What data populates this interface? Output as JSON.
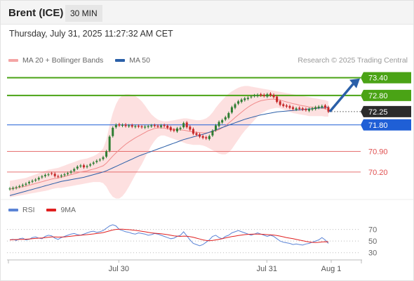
{
  "header": {
    "instrument": "Brent (ICE)",
    "timeframe": "30 MIN",
    "datetime": "Thursday, July 31, 2025 11:27:32 AM CET"
  },
  "legend": {
    "bollinger": {
      "label": "MA 20 + Bollinger Bands",
      "color": "#f08a8a"
    },
    "ma50": {
      "label": "MA 50",
      "color": "#2a5fa8"
    },
    "rsi": {
      "label": "RSI",
      "color": "#5b84d6"
    },
    "rsi_ma": {
      "label": "9MA",
      "color": "#e02020"
    }
  },
  "copyright": "Research © 2025 Trading Central",
  "chart_data": {
    "type": "candlestick",
    "price_scale": {
      "min": 69.6,
      "max": 73.75
    },
    "levels": [
      {
        "label": "73.40",
        "value": 73.4,
        "kind": "resistance",
        "color": "#4aa315"
      },
      {
        "label": "72.80",
        "value": 72.8,
        "kind": "resistance",
        "color": "#4aa315"
      },
      {
        "label": "72.25",
        "value": 72.25,
        "kind": "last",
        "color": "#2b2b2b"
      },
      {
        "label": "71.80",
        "value": 71.8,
        "kind": "pivot",
        "color": "#1f5fd6"
      },
      {
        "label": "70.90",
        "value": 70.9,
        "kind": "support",
        "color": "#e05050"
      },
      {
        "label": "70.20",
        "value": 70.2,
        "kind": "support",
        "color": "#e05050"
      }
    ],
    "candles_close": [
      69.64,
      69.66,
      69.68,
      69.72,
      69.76,
      69.8,
      69.86,
      69.9,
      69.94,
      70.0,
      70.05,
      70.1,
      70.12,
      70.14,
      70.06,
      70.04,
      70.08,
      70.12,
      70.16,
      70.22,
      70.3,
      70.38,
      70.42,
      70.36,
      70.4,
      70.46,
      70.52,
      70.58,
      70.62,
      70.7,
      70.9,
      71.4,
      71.7,
      71.8,
      71.78,
      71.8,
      71.76,
      71.78,
      71.74,
      71.76,
      71.74,
      71.72,
      71.74,
      71.76,
      71.78,
      71.76,
      71.74,
      71.78,
      71.76,
      71.7,
      71.62,
      71.6,
      71.68,
      71.7,
      71.86,
      71.72,
      71.64,
      71.5,
      71.46,
      71.4,
      71.36,
      71.34,
      71.42,
      71.6,
      71.78,
      71.9,
      71.96,
      72.06,
      72.2,
      72.4,
      72.5,
      72.6,
      72.66,
      72.7,
      72.72,
      72.76,
      72.8,
      72.82,
      72.8,
      72.78,
      72.84,
      72.8,
      72.74,
      72.58,
      72.48,
      72.44,
      72.42,
      72.38,
      72.34,
      72.36,
      72.34,
      72.32,
      72.3,
      72.34,
      72.36,
      72.4,
      72.42,
      72.44,
      72.38,
      72.25
    ],
    "candles_open": [
      69.62,
      69.63,
      69.66,
      69.7,
      69.73,
      69.77,
      69.82,
      69.87,
      69.91,
      69.95,
      70.02,
      70.06,
      70.1,
      70.16,
      70.14,
      70.06,
      70.05,
      70.09,
      70.13,
      70.18,
      70.24,
      70.32,
      70.39,
      70.43,
      70.37,
      70.42,
      70.48,
      70.54,
      70.6,
      70.64,
      70.72,
      70.92,
      71.42,
      71.72,
      71.82,
      71.77,
      71.81,
      71.75,
      71.79,
      71.73,
      71.77,
      71.75,
      71.71,
      71.73,
      71.75,
      71.79,
      71.77,
      71.73,
      71.79,
      71.77,
      71.72,
      71.64,
      71.58,
      71.66,
      71.72,
      71.88,
      71.74,
      71.66,
      71.52,
      71.48,
      71.42,
      71.38,
      71.32,
      71.44,
      71.62,
      71.76,
      71.88,
      71.98,
      72.04,
      72.22,
      72.38,
      72.52,
      72.58,
      72.64,
      72.68,
      72.74,
      72.78,
      72.78,
      72.84,
      72.82,
      72.76,
      72.86,
      72.82,
      72.76,
      72.6,
      72.5,
      72.46,
      72.44,
      72.4,
      72.32,
      72.38,
      72.36,
      72.34,
      72.28,
      72.32,
      72.34,
      72.38,
      72.4,
      72.46,
      72.4
    ],
    "ma20": [
      69.62,
      69.64,
      69.66,
      69.68,
      69.7,
      69.72,
      69.75,
      69.78,
      69.81,
      69.84,
      69.87,
      69.9,
      69.93,
      69.96,
      69.98,
      70.0,
      70.02,
      70.05,
      70.08,
      70.11,
      70.14,
      70.17,
      70.2,
      70.22,
      70.24,
      70.27,
      70.3,
      70.33,
      70.37,
      70.41,
      70.5,
      70.62,
      70.74,
      70.85,
      70.95,
      71.05,
      71.14,
      71.22,
      71.29,
      71.36,
      71.42,
      71.48,
      71.54,
      71.6,
      71.64,
      71.68,
      71.7,
      71.7,
      71.69,
      71.67,
      71.66,
      71.65,
      71.64,
      71.63,
      71.62,
      71.6,
      71.58,
      71.56,
      71.55,
      71.54,
      71.53,
      71.53,
      71.54,
      71.56,
      71.6,
      71.64,
      71.7,
      71.77,
      71.86,
      71.95,
      72.05,
      72.14,
      72.23,
      72.32,
      72.4,
      72.47,
      72.53,
      72.58,
      72.62,
      72.64,
      72.66,
      72.67,
      72.67,
      72.66,
      72.64,
      72.61,
      72.58,
      72.55,
      72.52,
      72.5,
      72.47,
      72.45,
      72.43,
      72.41,
      72.4,
      72.39,
      72.38,
      72.37,
      72.35,
      72.33
    ],
    "bb_upper": [
      69.9,
      69.92,
      69.94,
      69.96,
      69.98,
      70.0,
      70.04,
      70.08,
      70.12,
      70.16,
      70.2,
      70.24,
      70.28,
      70.3,
      70.32,
      70.34,
      70.38,
      70.42,
      70.46,
      70.5,
      70.54,
      70.58,
      70.62,
      70.64,
      70.66,
      70.7,
      70.74,
      70.8,
      70.88,
      71.0,
      71.3,
      71.8,
      72.2,
      72.5,
      72.7,
      72.8,
      72.84,
      72.84,
      72.82,
      72.78,
      72.7,
      72.6,
      72.46,
      72.3,
      72.16,
      72.06,
      71.98,
      71.94,
      71.92,
      71.92,
      71.94,
      71.96,
      71.98,
      72.0,
      72.02,
      72.02,
      72.0,
      71.98,
      71.96,
      71.96,
      71.98,
      72.02,
      72.1,
      72.22,
      72.38,
      72.52,
      72.64,
      72.76,
      72.86,
      72.94,
      73.0,
      73.06,
      73.1,
      73.12,
      73.12,
      73.1,
      73.08,
      73.06,
      73.04,
      73.02,
      73.0,
      72.98,
      72.96,
      72.94,
      72.92,
      72.9,
      72.88,
      72.86,
      72.84,
      72.82,
      72.8,
      72.78,
      72.76,
      72.74,
      72.72,
      72.7,
      72.68,
      72.66,
      72.64,
      72.6
    ],
    "bb_lower": [
      69.34,
      69.36,
      69.38,
      69.4,
      69.42,
      69.44,
      69.46,
      69.48,
      69.5,
      69.52,
      69.54,
      69.56,
      69.58,
      69.62,
      69.64,
      69.66,
      69.66,
      69.68,
      69.7,
      69.72,
      69.74,
      69.76,
      69.78,
      69.8,
      69.82,
      69.84,
      69.86,
      69.86,
      69.86,
      69.82,
      69.7,
      69.5,
      69.36,
      69.3,
      69.3,
      69.38,
      69.52,
      69.7,
      69.9,
      70.1,
      70.28,
      70.46,
      70.68,
      70.9,
      71.1,
      71.26,
      71.38,
      71.44,
      71.44,
      71.4,
      71.36,
      71.32,
      71.28,
      71.24,
      71.2,
      71.16,
      71.14,
      71.12,
      71.12,
      71.12,
      71.1,
      71.06,
      71.0,
      70.94,
      70.88,
      70.82,
      70.8,
      70.8,
      70.86,
      70.98,
      71.14,
      71.3,
      71.46,
      71.6,
      71.72,
      71.84,
      71.96,
      72.08,
      72.18,
      72.24,
      72.3,
      72.34,
      72.36,
      72.38,
      72.36,
      72.32,
      72.28,
      72.24,
      72.2,
      72.18,
      72.16,
      72.14,
      72.12,
      72.1,
      72.1,
      72.1,
      72.1,
      72.1,
      72.08,
      72.08
    ],
    "ma50": [
      69.4,
      69.43,
      69.46,
      69.49,
      69.52,
      69.55,
      69.58,
      69.61,
      69.64,
      69.67,
      69.7,
      69.73,
      69.76,
      69.79,
      69.82,
      69.85,
      69.88,
      69.9,
      69.92,
      69.94,
      69.96,
      69.98,
      70.0,
      70.02,
      70.05,
      70.08,
      70.11,
      70.14,
      70.17,
      70.2,
      70.24,
      70.29,
      70.34,
      70.39,
      70.44,
      70.49,
      70.54,
      70.59,
      70.64,
      70.69,
      70.74,
      70.78,
      70.82,
      70.86,
      70.9,
      70.94,
      70.98,
      71.02,
      71.06,
      71.1,
      71.14,
      71.18,
      71.22,
      71.26,
      71.3,
      71.33,
      71.36,
      71.39,
      71.42,
      71.45,
      71.48,
      71.51,
      71.55,
      71.59,
      71.63,
      71.67,
      71.71,
      71.75,
      71.79,
      71.83,
      71.87,
      71.91,
      71.95,
      71.99,
      72.02,
      72.05,
      72.08,
      72.11,
      72.14,
      72.16,
      72.18,
      72.2,
      72.22,
      72.24,
      72.25,
      72.26,
      72.27,
      72.28,
      72.29,
      72.3,
      72.31,
      72.32,
      72.33,
      72.34,
      72.35,
      72.36,
      72.37,
      72.38,
      72.39,
      72.4
    ],
    "rsi_scale": {
      "min": 20,
      "max": 90,
      "ticks": [
        "70",
        "50",
        "30"
      ]
    },
    "rsi": [
      52,
      53,
      51,
      54,
      55,
      52,
      53,
      56,
      57,
      55,
      54,
      58,
      60,
      59,
      55,
      53,
      56,
      58,
      60,
      62,
      63,
      61,
      60,
      62,
      64,
      66,
      67,
      65,
      66,
      68,
      72,
      76,
      78,
      76,
      70,
      68,
      66,
      65,
      63,
      62,
      64,
      63,
      62,
      60,
      61,
      63,
      62,
      60,
      58,
      56,
      54,
      55,
      58,
      60,
      66,
      59,
      52,
      46,
      44,
      42,
      44,
      48,
      52,
      58,
      60,
      56,
      54,
      58,
      60,
      64,
      66,
      68,
      66,
      64,
      62,
      60,
      62,
      64,
      62,
      60,
      58,
      60,
      58,
      54,
      50,
      48,
      47,
      46,
      44,
      45,
      44,
      43,
      45,
      46,
      48,
      50,
      52,
      56,
      52,
      46
    ],
    "rsi_ma": [
      52,
      52.5,
      52.6,
      52.8,
      53,
      53.2,
      53.5,
      54,
      54.5,
      55,
      55.4,
      56,
      56.5,
      57,
      57,
      56.8,
      56.9,
      57,
      57.6,
      58.2,
      59,
      59.6,
      60,
      60.5,
      61,
      61.6,
      62.3,
      63,
      63.6,
      64.5,
      66,
      67.6,
      69,
      70,
      70.5,
      70.5,
      70,
      69.6,
      69,
      68.4,
      67.7,
      66.8,
      66,
      65,
      64,
      63.5,
      63,
      62.5,
      61.8,
      61,
      60,
      59,
      58.5,
      58,
      58.5,
      58.2,
      57.5,
      56.5,
      55,
      53.5,
      52,
      51,
      50.5,
      51,
      52,
      53,
      54,
      55.5,
      56.6,
      57.6,
      58.5,
      59.5,
      60.3,
      61,
      61.5,
      61.7,
      62,
      62,
      61.8,
      61.5,
      61,
      60.7,
      60.3,
      59.6,
      58.5,
      57.3,
      56,
      55,
      54,
      53,
      51.8,
      50.6,
      49.5,
      48.5,
      47.8,
      47.5,
      47.8,
      48.5,
      48.8,
      48.6
    ],
    "x_ticks": [
      {
        "label": "Jul 30",
        "index": 33
      },
      {
        "label": "Jul 31",
        "index": 79
      },
      {
        "label": "Aug 1",
        "index": 99
      }
    ]
  }
}
